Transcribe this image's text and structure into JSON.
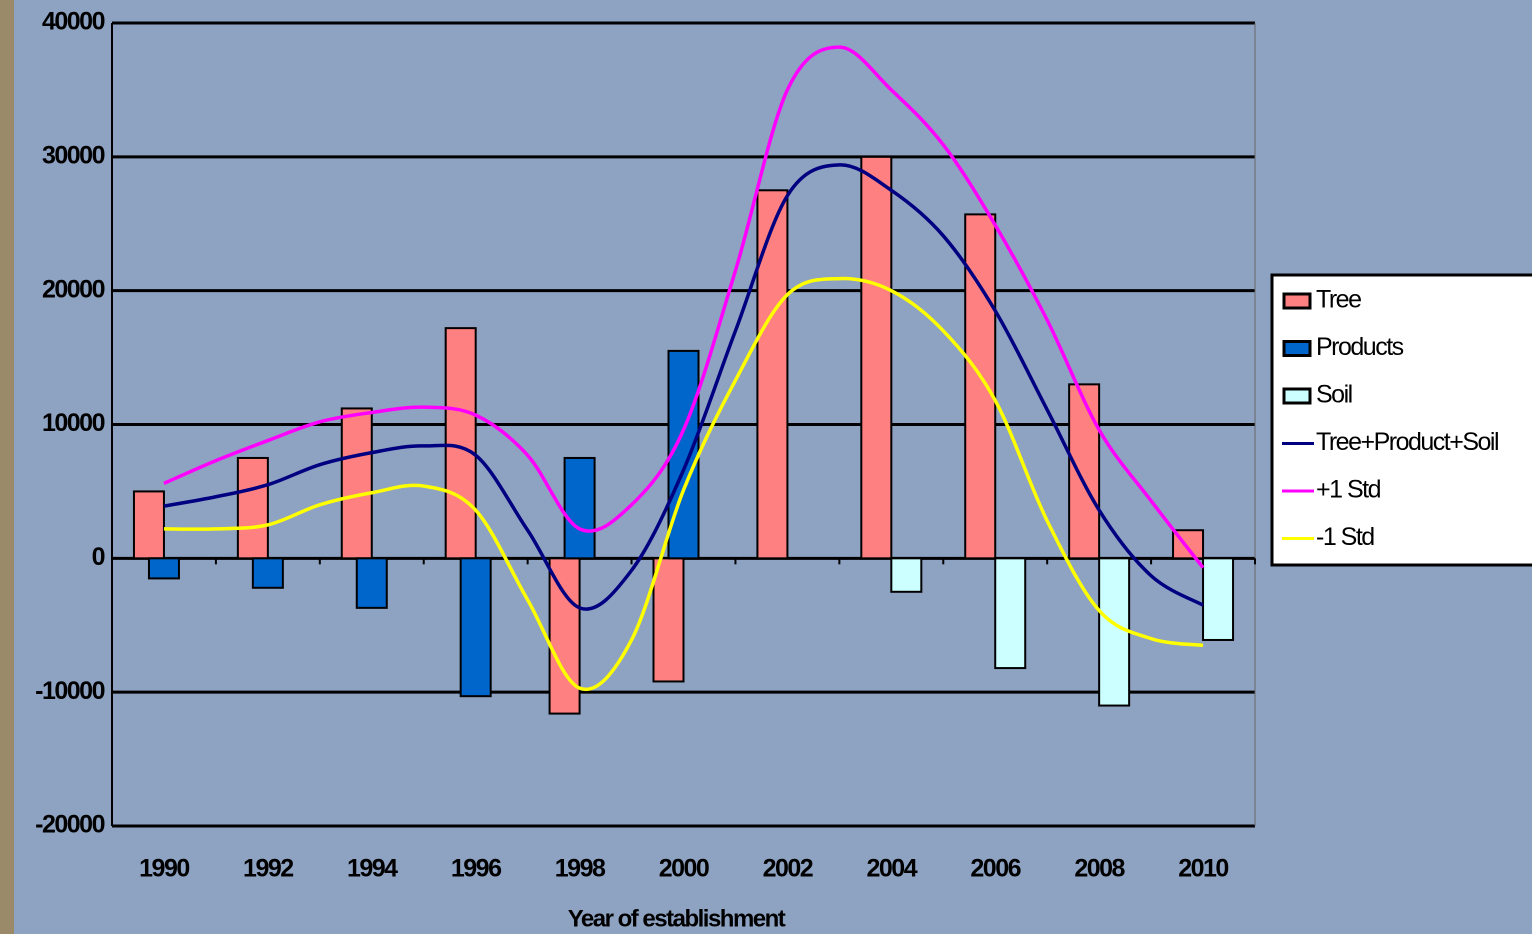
{
  "chart_data": {
    "type": "bar_line",
    "x_label": "Year of establishment",
    "categories": [
      "1990",
      "1992",
      "1994",
      "1996",
      "1998",
      "2000",
      "2002",
      "2004",
      "2006",
      "2008",
      "2010"
    ],
    "series": [
      {
        "name": "Tree",
        "kind": "bar",
        "color": "#ff8080",
        "values": [
          5000,
          7500,
          11200,
          17200,
          -11600,
          -9200,
          27500,
          30000,
          25700,
          13000,
          2100
        ]
      },
      {
        "name": "Products",
        "kind": "bar",
        "color": "#0066cc",
        "values": [
          -1500,
          -2200,
          -3700,
          -10300,
          7500,
          15500,
          null,
          null,
          null,
          null,
          null
        ]
      },
      {
        "name": "Soil",
        "kind": "bar",
        "color": "#ccffff",
        "values": [
          null,
          null,
          null,
          null,
          null,
          null,
          null,
          -2500,
          -8200,
          -11000,
          -6100
        ]
      },
      {
        "name": "Tree+Product+Soil",
        "kind": "line",
        "color": "#000080",
        "x": [
          1990,
          1991,
          1992,
          1993,
          1994,
          1995,
          1996,
          1997,
          1998,
          1999,
          2000,
          2001,
          2002,
          2003,
          2004,
          2005,
          2006,
          2007,
          2008,
          2009,
          2010
        ],
        "values": [
          3900,
          4600,
          5500,
          7000,
          7900,
          8400,
          7700,
          2100,
          -3700,
          -900,
          6600,
          17000,
          27100,
          29400,
          27500,
          24100,
          18500,
          11100,
          3600,
          -1300,
          -3500
        ]
      },
      {
        "name": "+1 Std",
        "kind": "line",
        "color": "#ff00ff",
        "x": [
          1990,
          1991,
          1992,
          1993,
          1994,
          1995,
          1996,
          1997,
          1998,
          1999,
          2000,
          2001,
          2002,
          2003,
          2004,
          2005,
          2006,
          2007,
          2008,
          2009,
          2010
        ],
        "values": [
          5600,
          7300,
          8800,
          10200,
          10900,
          11300,
          10700,
          7700,
          2200,
          4000,
          9600,
          21500,
          35000,
          38200,
          35000,
          30900,
          24900,
          17800,
          9600,
          4300,
          -700
        ]
      },
      {
        "name": "-1 Std",
        "kind": "line",
        "color": "#ffff00",
        "x": [
          1990,
          1991,
          1992,
          1993,
          1994,
          1995,
          1996,
          1997,
          1998,
          1999,
          2000,
          2001,
          2002,
          2003,
          2004,
          2005,
          2006,
          2007,
          2008,
          2009,
          2010
        ],
        "values": [
          2200,
          2200,
          2500,
          4000,
          4900,
          5400,
          3600,
          -3100,
          -9700,
          -6100,
          5100,
          13300,
          19700,
          20900,
          20000,
          17000,
          11800,
          2800,
          -3900,
          -6000,
          -6500
        ]
      }
    ],
    "ylim": [
      -20000,
      40000
    ],
    "yticks": [
      -20000,
      -10000,
      0,
      10000,
      20000,
      30000,
      40000
    ],
    "grid": true,
    "legend": "right"
  }
}
